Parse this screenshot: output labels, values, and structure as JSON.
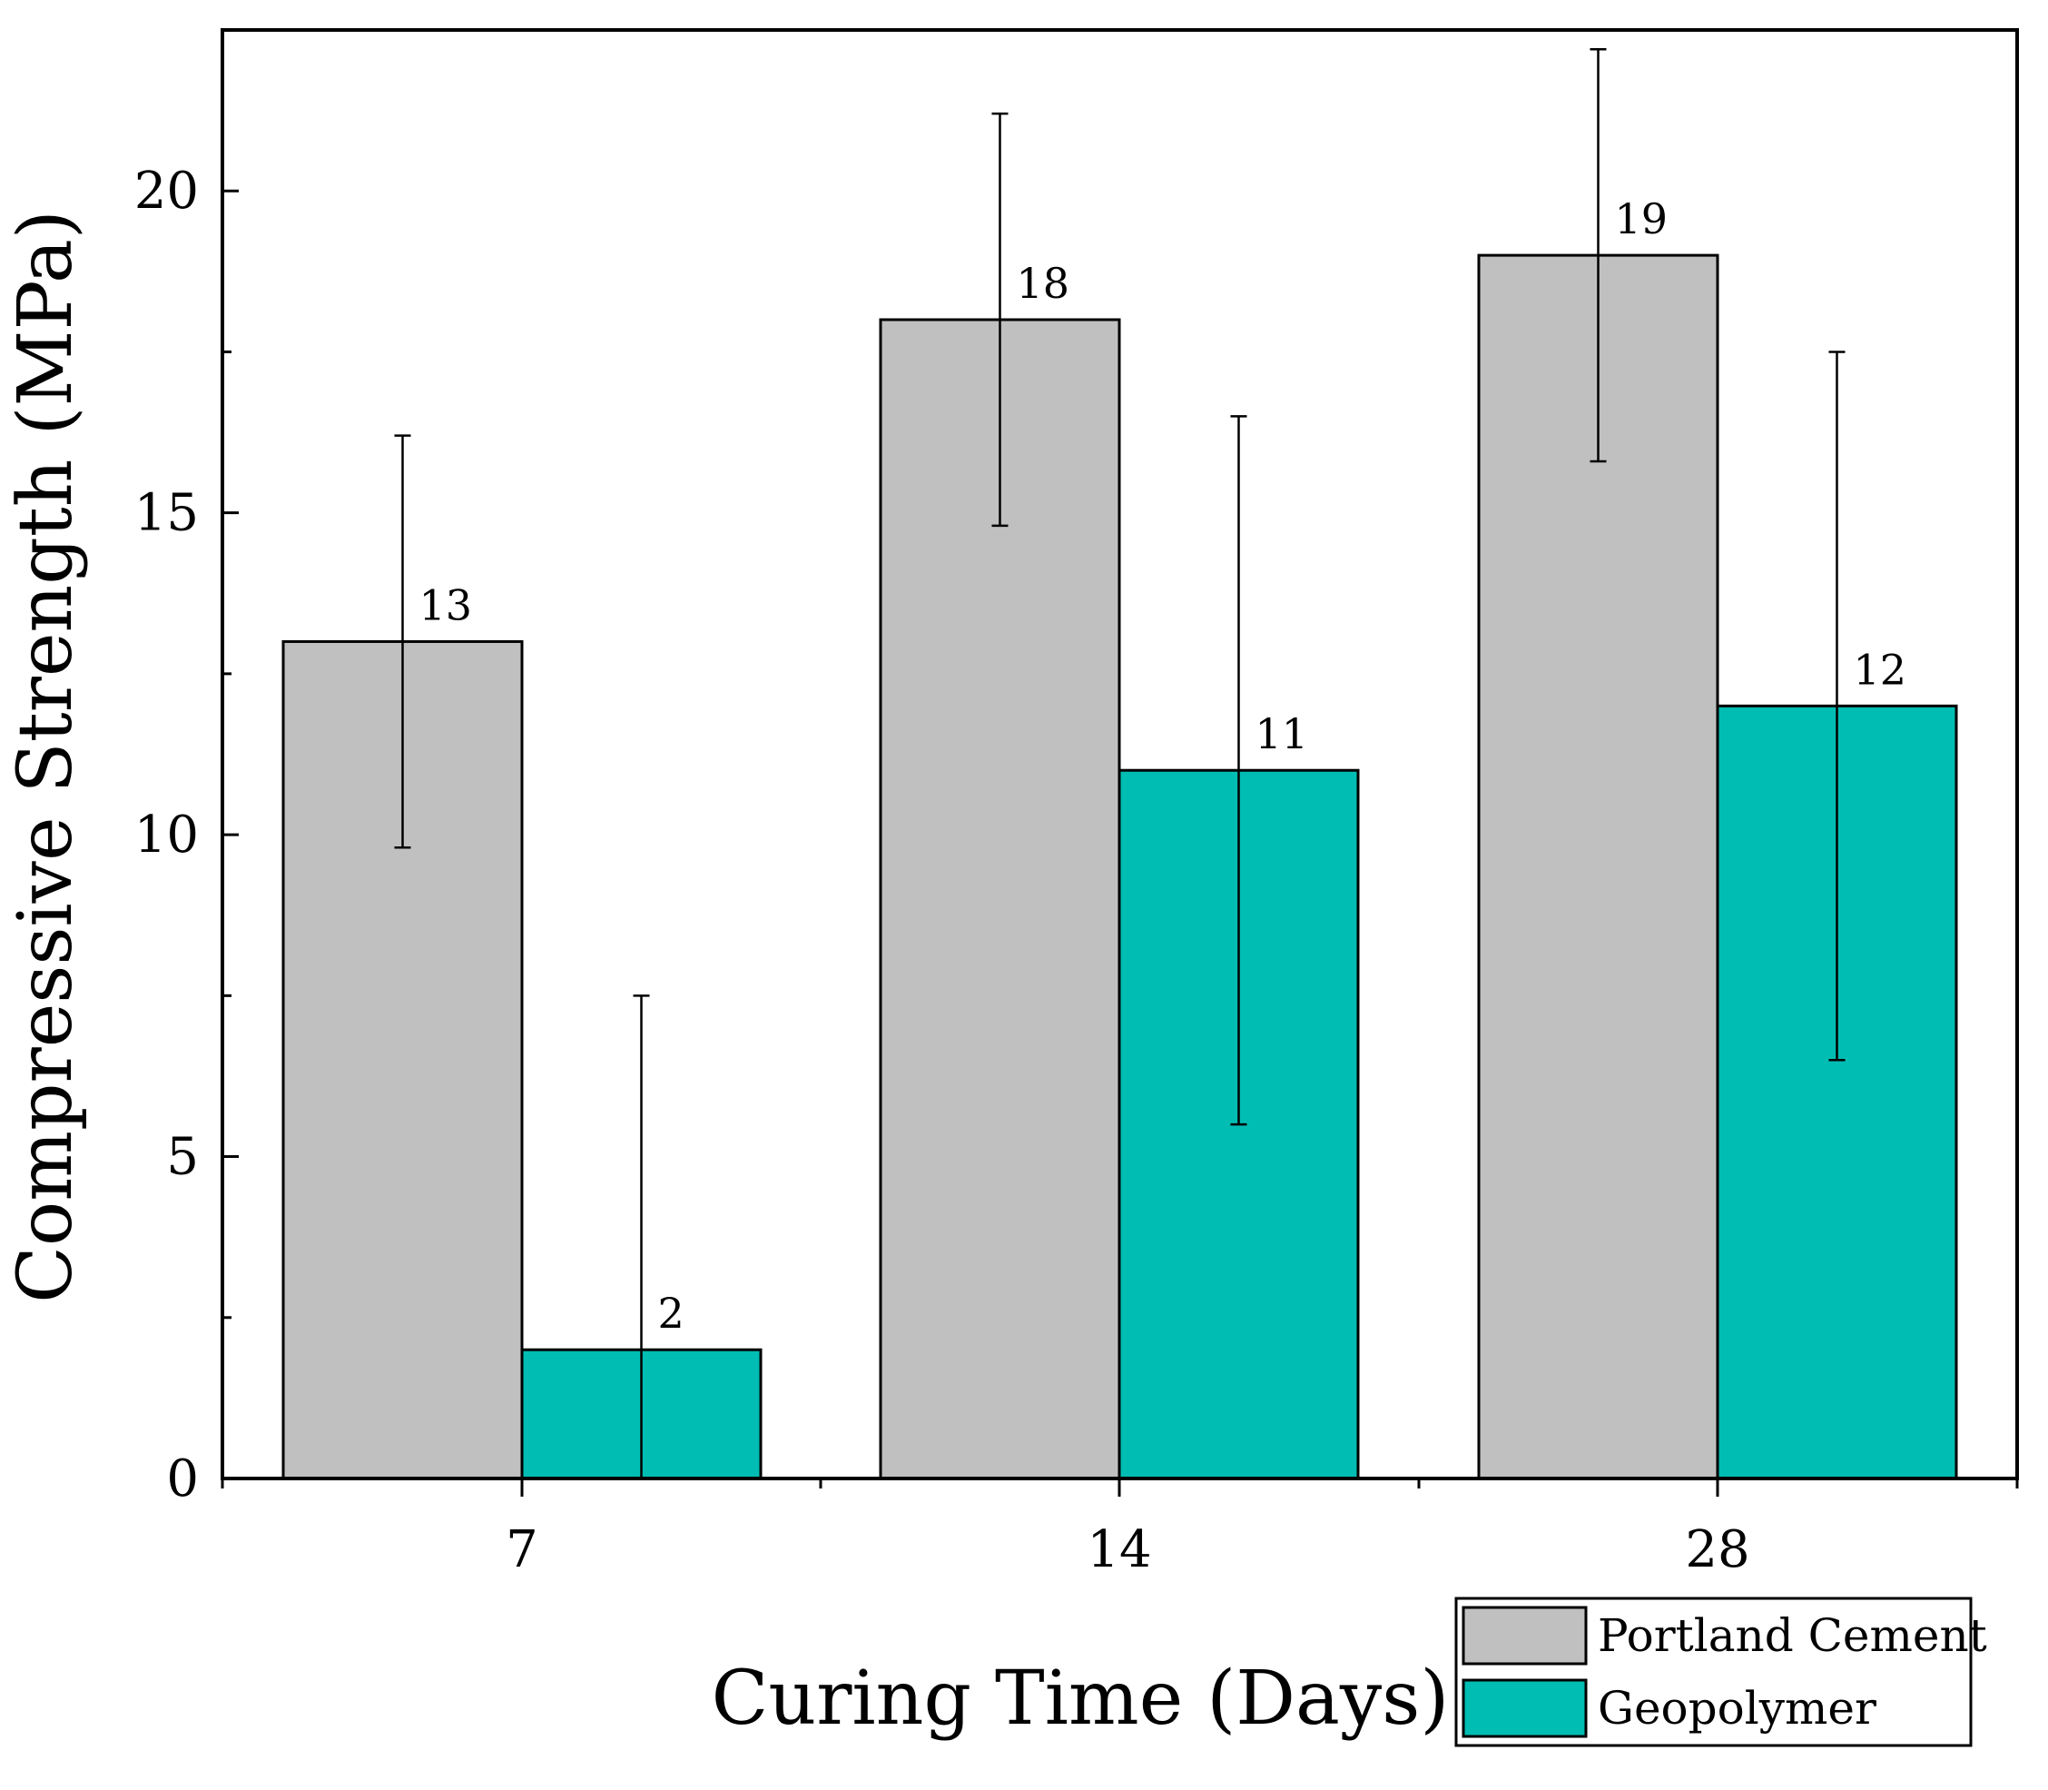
{
  "chart_data": {
    "type": "bar",
    "xlabel": "Curing Time (Days)",
    "ylabel": "Compressive Strength (MPa)",
    "categories": [
      "7",
      "14",
      "28"
    ],
    "series": [
      {
        "name": "Portland Cement",
        "color": "#c0c0c0",
        "values": [
          13,
          18,
          19
        ],
        "error_low": [
          9.8,
          14.8,
          15.8
        ],
        "error_high": [
          16.2,
          21.2,
          22.2
        ],
        "labels": [
          "13",
          "18",
          "19"
        ]
      },
      {
        "name": "Geopolymer",
        "color": "#00bdb3",
        "values": [
          2,
          11,
          12
        ],
        "error_low": [
          0,
          5.5,
          6.5
        ],
        "error_high": [
          7.5,
          16.5,
          17.5
        ],
        "labels": [
          "2",
          "11",
          "12"
        ]
      }
    ],
    "ylim": [
      0,
      22.5
    ],
    "yticks": [
      0,
      5,
      10,
      15,
      20
    ],
    "yticklabels": [
      "0",
      "5",
      "10",
      "15",
      "20"
    ],
    "grid": false,
    "legend_position": "bottom-right"
  }
}
